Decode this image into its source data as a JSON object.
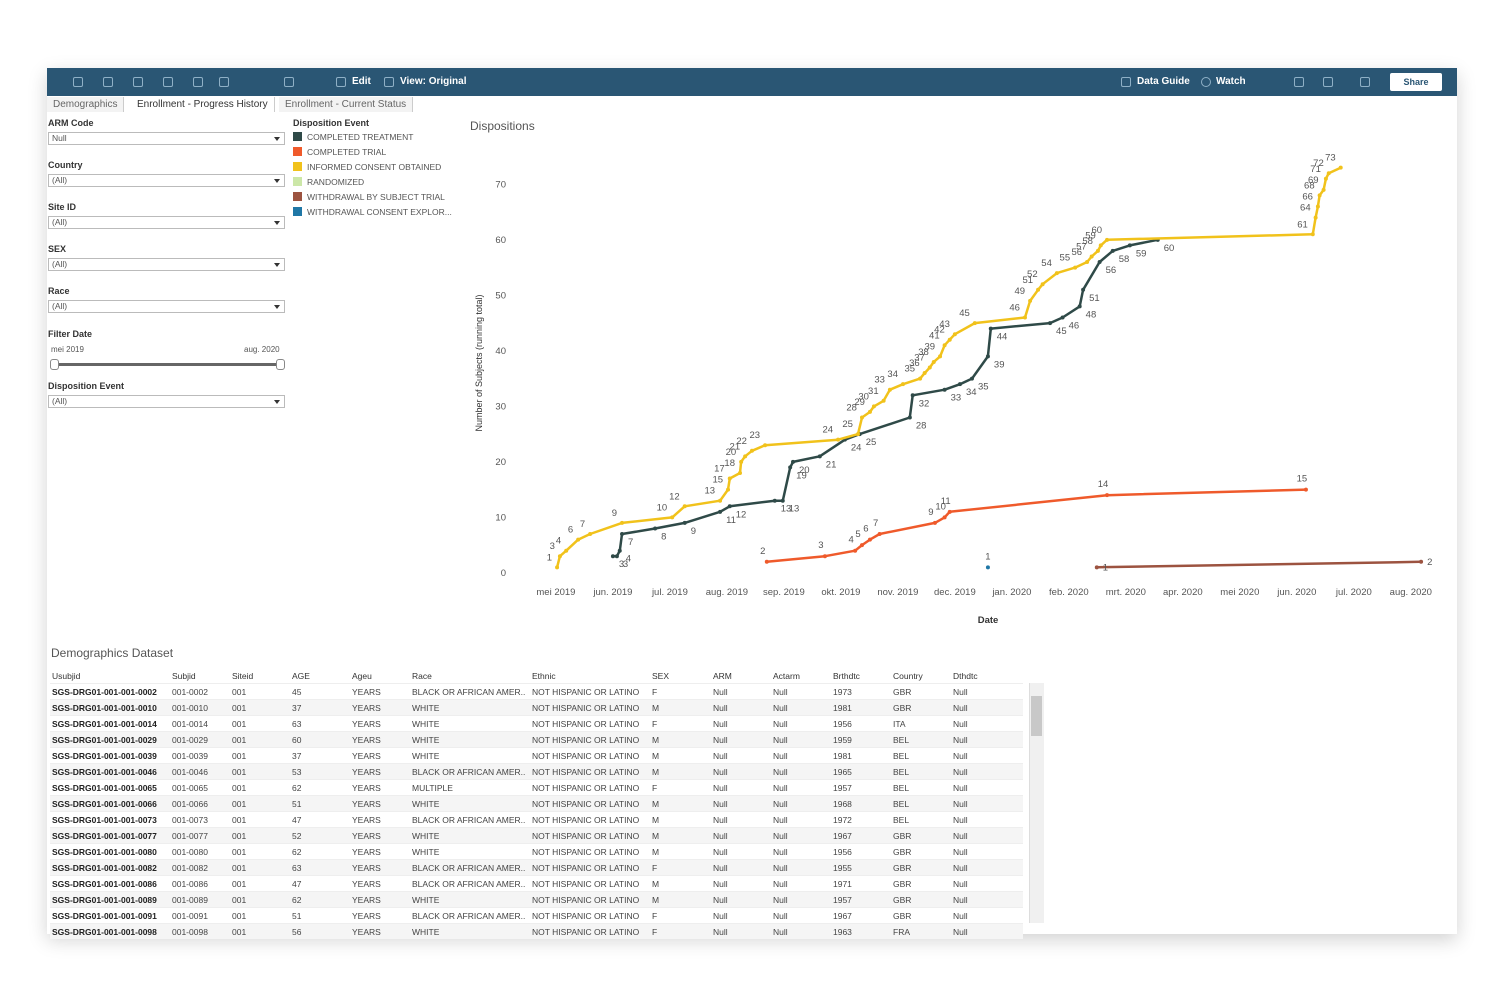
{
  "toolbar": {
    "edit": "Edit",
    "view": "View: Original",
    "data_guide": "Data Guide",
    "watch": "Watch",
    "share": "Share"
  },
  "tabs": [
    "Demographics",
    "Enrollment - Progress History",
    "Enrollment - Current Status"
  ],
  "active_tab": 1,
  "filters": [
    {
      "label": "ARM Code",
      "value": "Null"
    },
    {
      "label": "Country",
      "value": "(All)"
    },
    {
      "label": "Site ID",
      "value": "(All)"
    },
    {
      "label": "SEX",
      "value": "(All)"
    },
    {
      "label": "Race",
      "value": "(All)"
    }
  ],
  "date_filter": {
    "label": "Filter Date",
    "start": "mei 2019",
    "end": "aug. 2020"
  },
  "event_filter": {
    "label": "Disposition Event",
    "value": "(All)"
  },
  "chart_data": {
    "type": "line",
    "title": "Dispositions",
    "legend_title": "Disposition Event",
    "x_label": "Date",
    "y_label": "Number of Subjects (running total)",
    "xlim": [
      -0.49,
      15.6
    ],
    "xticks": [
      {
        "value": 0,
        "label": "mei 2019"
      },
      {
        "value": 1,
        "label": "jun. 2019"
      },
      {
        "value": 2,
        "label": "jul. 2019"
      },
      {
        "value": 3,
        "label": "aug. 2019"
      },
      {
        "value": 4,
        "label": "sep. 2019"
      },
      {
        "value": 5,
        "label": "okt. 2019"
      },
      {
        "value": 6,
        "label": "nov. 2019"
      },
      {
        "value": 7,
        "label": "dec. 2019"
      },
      {
        "value": 8,
        "label": "jan. 2020"
      },
      {
        "value": 9,
        "label": "feb. 2020"
      },
      {
        "value": 10,
        "label": "mrt. 2020"
      },
      {
        "value": 11,
        "label": "apr. 2020"
      },
      {
        "value": 12,
        "label": "mei 2020"
      },
      {
        "value": 13,
        "label": "jun. 2020"
      },
      {
        "value": 14,
        "label": "jul. 2020"
      },
      {
        "value": 15,
        "label": "aug. 2020"
      }
    ],
    "ylim": [
      -2,
      76
    ],
    "yticks": [
      0,
      10,
      20,
      30,
      40,
      50,
      60,
      70
    ],
    "series": [
      {
        "name": "COMPLETED TREATMENT",
        "color": "#2f4a48",
        "x": [
          1.0,
          1.07,
          1.12,
          1.16,
          1.74,
          2.26,
          2.88,
          3.05,
          3.84,
          3.98,
          4.11,
          4.16,
          4.63,
          5.07,
          5.33,
          6.21,
          6.26,
          6.82,
          7.09,
          7.3,
          7.58,
          7.63,
          8.67,
          8.89,
          9.19,
          9.25,
          9.54,
          9.77,
          10.07,
          10.56
        ],
        "values": [
          3,
          3,
          4,
          7,
          8,
          9,
          11,
          12,
          13,
          13,
          19,
          20,
          21,
          24,
          25,
          28,
          32,
          33,
          34,
          35,
          39,
          44,
          45,
          46,
          48,
          51,
          56,
          58,
          59,
          60
        ]
      },
      {
        "name": "COMPLETED TRIAL",
        "color": "#ef5a2b",
        "x": [
          3.7,
          4.72,
          5.25,
          5.37,
          5.51,
          5.68,
          6.65,
          6.82,
          6.91,
          9.67,
          13.16
        ],
        "values": [
          2,
          3,
          4,
          5,
          6,
          7,
          9,
          10,
          11,
          14,
          15
        ]
      },
      {
        "name": "INFORMED CONSENT OBTAINED",
        "color": "#f1c21b",
        "x": [
          0.02,
          0.07,
          0.18,
          0.39,
          0.6,
          1.16,
          2.04,
          2.26,
          2.88,
          3.02,
          3.05,
          3.23,
          3.25,
          3.32,
          3.44,
          3.67,
          4.95,
          5.3,
          5.37,
          5.51,
          5.58,
          5.75,
          5.86,
          6.09,
          6.39,
          6.47,
          6.56,
          6.63,
          6.74,
          6.82,
          6.91,
          7.0,
          7.35,
          8.23,
          8.32,
          8.46,
          8.54,
          8.79,
          9.11,
          9.32,
          9.4,
          9.51,
          9.56,
          9.67,
          13.28,
          13.33,
          13.37,
          13.4,
          13.47,
          13.51,
          13.56,
          13.77
        ],
        "values": [
          1,
          3,
          4,
          6,
          7,
          9,
          10,
          12,
          13,
          15,
          17,
          18,
          20,
          21,
          22,
          23,
          24,
          25,
          28,
          29,
          30,
          31,
          33,
          34,
          35,
          36,
          37,
          38,
          39,
          41,
          42,
          43,
          45,
          46,
          49,
          51,
          52,
          54,
          55,
          56,
          57,
          58,
          59,
          60,
          61,
          64,
          66,
          68,
          69,
          71,
          72,
          73
        ]
      },
      {
        "name": "RANDOMIZED",
        "color": "#cce7a8",
        "x": [],
        "values": []
      },
      {
        "name": "WITHDRAWAL BY SUBJECT TRIAL",
        "color": "#9c5340",
        "x": [
          9.49,
          15.18
        ],
        "values": [
          1,
          2
        ]
      },
      {
        "name": "WITHDRAWAL CONSENT EXPLOR...",
        "color": "#1f77a6",
        "x": [
          7.58
        ],
        "values": [
          1
        ]
      }
    ]
  },
  "table": {
    "title": "Demographics Dataset",
    "columns": [
      "Usubjid",
      "Subjid",
      "Siteid",
      "AGE",
      "Ageu",
      "Race",
      "Ethnic",
      "SEX",
      "ARM",
      "Actarm",
      "Brthdtc",
      "Country",
      "Dthdtc"
    ],
    "rows": [
      [
        "SGS-DRG01-001-001-0002",
        "001-0002",
        "001",
        "45",
        "YEARS",
        "BLACK OR AFRICAN AMER..",
        "NOT HISPANIC OR LATINO",
        "F",
        "Null",
        "Null",
        "1973",
        "GBR",
        "Null"
      ],
      [
        "SGS-DRG01-001-001-0010",
        "001-0010",
        "001",
        "37",
        "YEARS",
        "WHITE",
        "NOT HISPANIC OR LATINO",
        "M",
        "Null",
        "Null",
        "1981",
        "GBR",
        "Null"
      ],
      [
        "SGS-DRG01-001-001-0014",
        "001-0014",
        "001",
        "63",
        "YEARS",
        "WHITE",
        "NOT HISPANIC OR LATINO",
        "F",
        "Null",
        "Null",
        "1956",
        "ITA",
        "Null"
      ],
      [
        "SGS-DRG01-001-001-0029",
        "001-0029",
        "001",
        "60",
        "YEARS",
        "WHITE",
        "NOT HISPANIC OR LATINO",
        "M",
        "Null",
        "Null",
        "1959",
        "BEL",
        "Null"
      ],
      [
        "SGS-DRG01-001-001-0039",
        "001-0039",
        "001",
        "37",
        "YEARS",
        "WHITE",
        "NOT HISPANIC OR LATINO",
        "M",
        "Null",
        "Null",
        "1981",
        "BEL",
        "Null"
      ],
      [
        "SGS-DRG01-001-001-0046",
        "001-0046",
        "001",
        "53",
        "YEARS",
        "BLACK OR AFRICAN AMER..",
        "NOT HISPANIC OR LATINO",
        "M",
        "Null",
        "Null",
        "1965",
        "BEL",
        "Null"
      ],
      [
        "SGS-DRG01-001-001-0065",
        "001-0065",
        "001",
        "62",
        "YEARS",
        "MULTIPLE",
        "NOT HISPANIC OR LATINO",
        "F",
        "Null",
        "Null",
        "1957",
        "BEL",
        "Null"
      ],
      [
        "SGS-DRG01-001-001-0066",
        "001-0066",
        "001",
        "51",
        "YEARS",
        "WHITE",
        "NOT HISPANIC OR LATINO",
        "M",
        "Null",
        "Null",
        "1968",
        "BEL",
        "Null"
      ],
      [
        "SGS-DRG01-001-001-0073",
        "001-0073",
        "001",
        "47",
        "YEARS",
        "BLACK OR AFRICAN AMER..",
        "NOT HISPANIC OR LATINO",
        "M",
        "Null",
        "Null",
        "1972",
        "BEL",
        "Null"
      ],
      [
        "SGS-DRG01-001-001-0077",
        "001-0077",
        "001",
        "52",
        "YEARS",
        "WHITE",
        "NOT HISPANIC OR LATINO",
        "M",
        "Null",
        "Null",
        "1967",
        "GBR",
        "Null"
      ],
      [
        "SGS-DRG01-001-001-0080",
        "001-0080",
        "001",
        "62",
        "YEARS",
        "WHITE",
        "NOT HISPANIC OR LATINO",
        "M",
        "Null",
        "Null",
        "1956",
        "GBR",
        "Null"
      ],
      [
        "SGS-DRG01-001-001-0082",
        "001-0082",
        "001",
        "63",
        "YEARS",
        "BLACK OR AFRICAN AMER..",
        "NOT HISPANIC OR LATINO",
        "F",
        "Null",
        "Null",
        "1955",
        "GBR",
        "Null"
      ],
      [
        "SGS-DRG01-001-001-0086",
        "001-0086",
        "001",
        "47",
        "YEARS",
        "BLACK OR AFRICAN AMER..",
        "NOT HISPANIC OR LATINO",
        "M",
        "Null",
        "Null",
        "1971",
        "GBR",
        "Null"
      ],
      [
        "SGS-DRG01-001-001-0089",
        "001-0089",
        "001",
        "62",
        "YEARS",
        "WHITE",
        "NOT HISPANIC OR LATINO",
        "M",
        "Null",
        "Null",
        "1957",
        "GBR",
        "Null"
      ],
      [
        "SGS-DRG01-001-001-0091",
        "001-0091",
        "001",
        "51",
        "YEARS",
        "BLACK OR AFRICAN AMER..",
        "NOT HISPANIC OR LATINO",
        "F",
        "Null",
        "Null",
        "1967",
        "GBR",
        "Null"
      ],
      [
        "SGS-DRG01-001-001-0098",
        "001-0098",
        "001",
        "56",
        "YEARS",
        "WHITE",
        "NOT HISPANIC OR LATINO",
        "F",
        "Null",
        "Null",
        "1963",
        "FRA",
        "Null"
      ]
    ]
  }
}
